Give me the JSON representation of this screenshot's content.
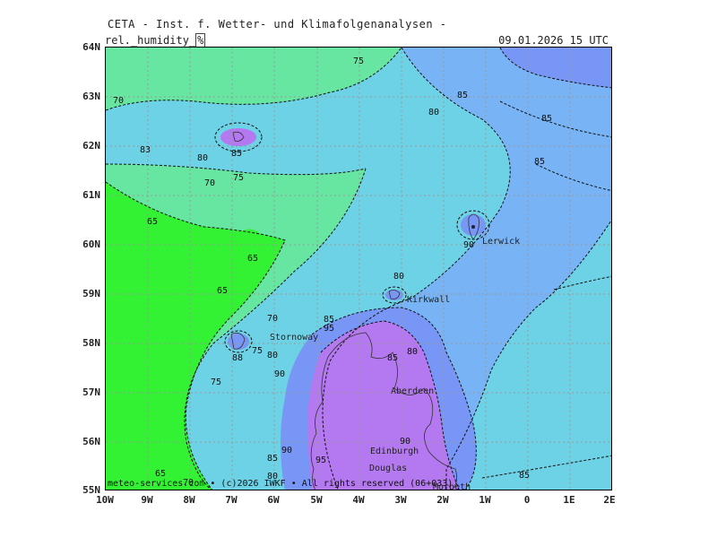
{
  "header": {
    "title": "CETA - Inst. f. Wetter- und Klimafolgenanalysen -",
    "param_name": "rel._humidity_",
    "param_unit": "%",
    "datetime": "09.01.2026 15 UTC"
  },
  "axes": {
    "lat_labels": [
      "64N",
      "63N",
      "62N",
      "61N",
      "60N",
      "59N",
      "58N",
      "57N",
      "56N",
      "55N"
    ],
    "lon_labels": [
      "10W",
      "9W",
      "8W",
      "7W",
      "6W",
      "5W",
      "4W",
      "3W",
      "2W",
      "1W",
      "0",
      "1E",
      "2E"
    ]
  },
  "contours": [
    "75",
    "85",
    "70",
    "80",
    "85",
    "83",
    "85",
    "80",
    "70",
    "75",
    "65",
    "85",
    "65",
    "80",
    "65",
    "90",
    "70",
    "85",
    "95",
    "80",
    "75",
    "80",
    "88",
    "90",
    "75",
    "85",
    "90",
    "90",
    "85",
    "95",
    "80",
    "70",
    "65",
    "85"
  ],
  "places": [
    "Lerwick",
    "Kirkwall",
    "Stornoway",
    "Aberdeen",
    "Edinburgh",
    "Douglas",
    "Morpeth"
  ],
  "footer": "meteo-services.com • (c)2026 IWKF • All rights reserved (06+033)",
  "colors": {
    "rh_65": "#33f233",
    "rh_70": "#66e6a0",
    "rh_80": "#6ed2e6",
    "rh_85": "#78b4f5",
    "rh_90": "#7896f5",
    "rh_95": "#b478f0"
  }
}
